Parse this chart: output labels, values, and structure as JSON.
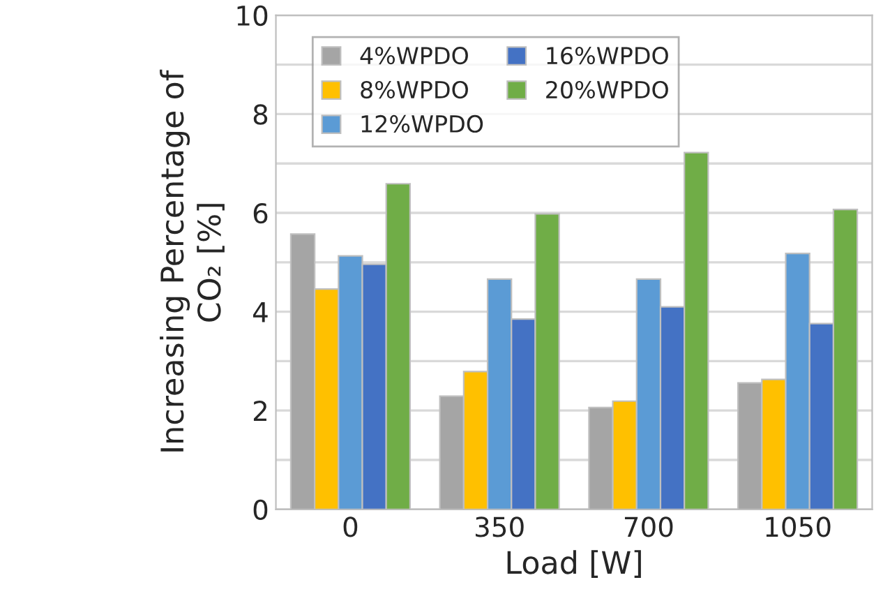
{
  "chart_data": {
    "type": "bar",
    "xlabel": "Load [W]",
    "ylabel": "Increasing Percentage of\nCO₂ [%]",
    "categories": [
      "0",
      "350",
      "700",
      "1050"
    ],
    "series": [
      {
        "name": "4%WPDO",
        "color": "#a5a5a5",
        "values": [
          5.57,
          2.29,
          2.06,
          2.56
        ]
      },
      {
        "name": "8%WPDO",
        "color": "#ffc000",
        "values": [
          4.46,
          2.79,
          2.19,
          2.63
        ]
      },
      {
        "name": "12%WPDO",
        "color": "#5b9bd5",
        "values": [
          5.13,
          4.66,
          4.66,
          5.18
        ]
      },
      {
        "name": "16%WPDO",
        "color": "#4472c4",
        "values": [
          4.96,
          3.85,
          4.1,
          3.76
        ]
      },
      {
        "name": "20%WPDO",
        "color": "#70ad47",
        "values": [
          6.59,
          5.98,
          7.22,
          6.07
        ]
      }
    ],
    "ylim": [
      0,
      10
    ],
    "yticks": [
      0,
      {
        "value": 1,
        "label": null
      },
      2,
      {
        "value": 3,
        "label": null
      },
      4,
      {
        "value": 5,
        "label": null
      },
      6,
      {
        "value": 7,
        "label": null
      },
      8,
      {
        "value": 9,
        "label": null
      },
      10
    ],
    "grid": "y",
    "legend": "top left"
  }
}
